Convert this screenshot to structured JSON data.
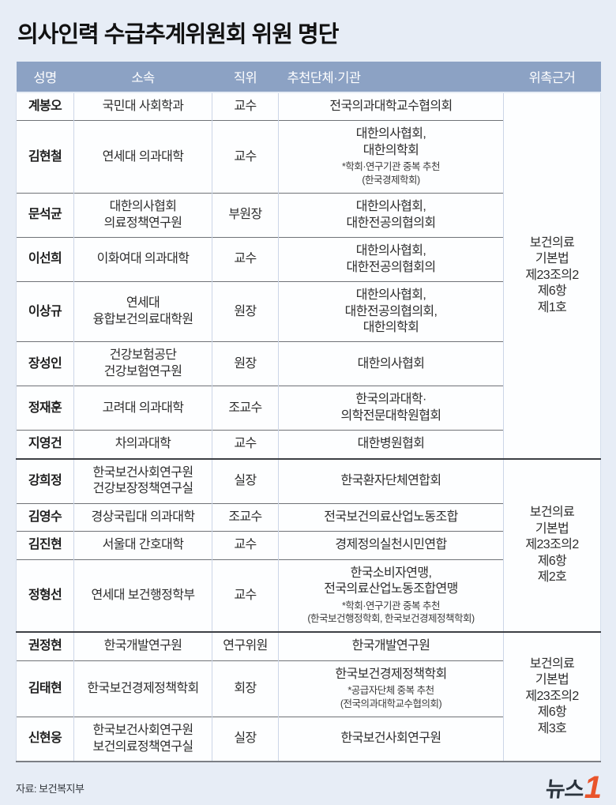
{
  "title": "의사인력 수급추계위원회 위원 명단",
  "source_label": "자료: 보건복지부",
  "logo": {
    "text": "뉴스",
    "one": "1"
  },
  "colors": {
    "page_bg": "#e7edf6",
    "header_bg": "#8ca2c4",
    "pale_cell_bg": "#e9f1fb",
    "white_cell_bg": "#fdfeff",
    "group_line": "#3d4045",
    "row_line": "#6f7277",
    "logo_accent": "#e9542b"
  },
  "table": {
    "headers": [
      "성명",
      "소속",
      "직위",
      "추천단체·기관",
      "위촉근거"
    ],
    "groups": [
      {
        "basis": "보건의료\n기본법\n제23조의2\n제6항\n제1호",
        "rows": [
          {
            "name": "계봉오",
            "affiliation": "국민대 사회학과",
            "position": "교수",
            "org": "전국의과대학교수협의회",
            "note": ""
          },
          {
            "name": "김현철",
            "affiliation": "연세대 의과대학",
            "position": "교수",
            "org": "대한의사협회,\n대한의학회",
            "note": "*학회·연구기관 중복 추천\n(한국경제학회)"
          },
          {
            "name": "문석균",
            "affiliation": "대한의사협회\n의료정책연구원",
            "position": "부원장",
            "org": "대한의사협회,\n대한전공의협의회",
            "note": ""
          },
          {
            "name": "이선희",
            "affiliation": "이화여대 의과대학",
            "position": "교수",
            "org": "대한의사협회,\n대한전공의협회의",
            "note": ""
          },
          {
            "name": "이상규",
            "affiliation": "연세대\n융합보건의료대학원",
            "position": "원장",
            "org": "대한의사협회,\n대한전공의협의회,\n대한의학회",
            "note": ""
          },
          {
            "name": "장성인",
            "affiliation": "건강보험공단\n건강보험연구원",
            "position": "원장",
            "org": "대한의사협회",
            "note": ""
          },
          {
            "name": "정재훈",
            "affiliation": "고려대 의과대학",
            "position": "조교수",
            "org": "한국의과대학·\n의학전문대학원협회",
            "note": ""
          },
          {
            "name": "지영건",
            "affiliation": "차의과대학",
            "position": "교수",
            "org": "대한병원협회",
            "note": ""
          }
        ]
      },
      {
        "basis": "보건의료\n기본법\n제23조의2\n제6항\n제2호",
        "rows": [
          {
            "name": "강희정",
            "affiliation": "한국보건사회연구원\n건강보장정책연구실",
            "position": "실장",
            "org": "한국환자단체연합회",
            "note": ""
          },
          {
            "name": "김영수",
            "affiliation": "경상국립대 의과대학",
            "position": "조교수",
            "org": "전국보건의료산업노동조합",
            "note": ""
          },
          {
            "name": "김진현",
            "affiliation": "서울대 간호대학",
            "position": "교수",
            "org": "경제정의실천시민연합",
            "note": ""
          },
          {
            "name": "정형선",
            "affiliation": "연세대 보건행정학부",
            "position": "교수",
            "org": "한국소비자연맹,\n전국의료산업노동조합연맹",
            "note": "*학회·연구기관 중복 추천\n(한국보건행정학회, 한국보건경제정책학회)"
          }
        ]
      },
      {
        "basis": "보건의료\n기본법\n제23조의2\n제6항\n제3호",
        "rows": [
          {
            "name": "권정현",
            "affiliation": "한국개발연구원",
            "position": "연구위원",
            "org": "한국개발연구원",
            "note": ""
          },
          {
            "name": "김태현",
            "affiliation": "한국보건경제정책학회",
            "position": "회장",
            "org": "한국보건경제정책학회",
            "note": "*공급자단체 중복 추천\n(전국의과대학교수협의회)"
          },
          {
            "name": "신현웅",
            "affiliation": "한국보건사회연구원\n보건의료정책연구실",
            "position": "실장",
            "org": "한국보건사회연구원",
            "note": ""
          }
        ]
      }
    ]
  }
}
